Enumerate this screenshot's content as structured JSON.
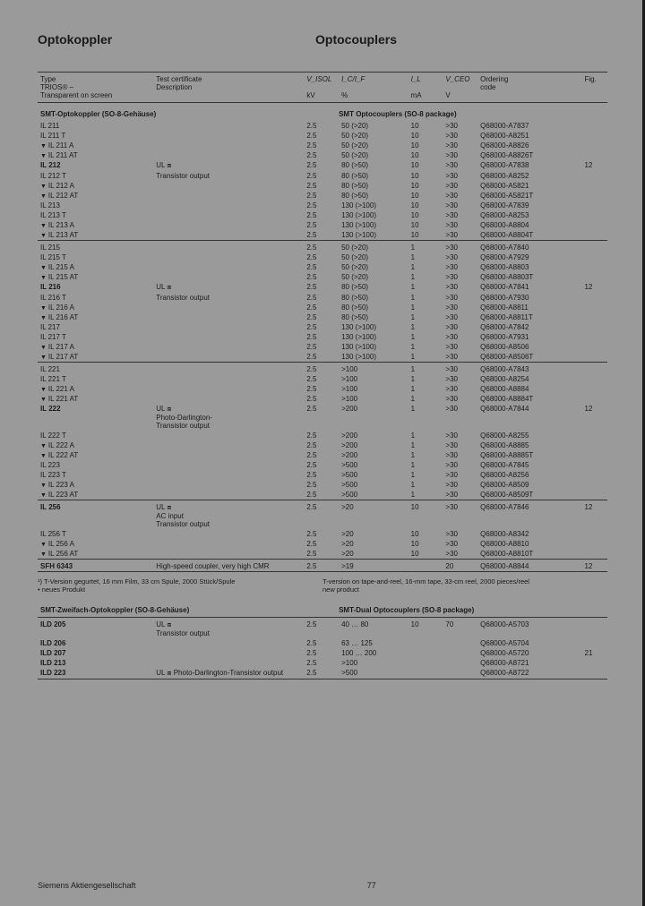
{
  "title_de": "Optokoppler",
  "title_en": "Optocouplers",
  "header": {
    "type": "Type\nTRIOS® –\nTransparent on screen",
    "desc": "Test certificate\nDescription",
    "viso": "V_ISOL",
    "viso_unit": "kV",
    "ictr": "I_C/I_F",
    "ictr_unit": "%",
    "il": "I_L",
    "il_unit": "mA",
    "vce": "V_CEO",
    "vce_unit": "V",
    "ord": "Ordering\ncode",
    "fig": "Fig."
  },
  "section1_de": "SMT-Optokoppler (SO-8-Gehäuse)",
  "section1_en": "SMT Optocouplers (SO-8 package)",
  "desc1a": "UL ⧈",
  "desc1b": "Transistor output",
  "desc1c": "UL ⧈\nPhoto-Darlington-\nTransistor output",
  "desc1d": "UL ⧈\nAC input\nTransistor output",
  "desc1e": "High-speed coupler, very high CMR",
  "groups": [
    {
      "rows": [
        {
          "t": "IL 211",
          "v": "2.5",
          "c": "50 (>20)",
          "il": "10",
          "vc": ">30",
          "o": "Q68000-A7837"
        },
        {
          "t": "IL 211 T",
          "v": "2.5",
          "c": "50 (>20)",
          "il": "10",
          "vc": ">30",
          "o": "Q68000-A8251"
        },
        {
          "t": "IL 211 A",
          "b": 1,
          "v": "2.5",
          "c": "50 (>20)",
          "il": "10",
          "vc": ">30",
          "o": "Q68000-A8826"
        },
        {
          "t": "IL 211 AT",
          "b": 1,
          "v": "2.5",
          "c": "50 (>20)",
          "il": "10",
          "vc": ">30",
          "o": "Q68000-A8826T"
        },
        {
          "t": "IL 212",
          "bold": 1,
          "v": "2.5",
          "c": "80 (>50)",
          "il": "10",
          "vc": ">30",
          "o": "Q68000-A7838",
          "fig": "12"
        },
        {
          "t": "IL 212 T",
          "v": "2.5",
          "c": "80 (>50)",
          "il": "10",
          "vc": ">30",
          "o": "Q68000-A8252"
        },
        {
          "t": "IL 212 A",
          "b": 1,
          "v": "2.5",
          "c": "80 (>50)",
          "il": "10",
          "vc": ">30",
          "o": "Q68000-A5821"
        },
        {
          "t": "IL 212 AT",
          "b": 1,
          "v": "2.5",
          "c": "80 (>50)",
          "il": "10",
          "vc": ">30",
          "o": "Q68000-A5821T"
        },
        {
          "t": "IL 213",
          "v": "2.5",
          "c": "130 (>100)",
          "il": "10",
          "vc": ">30",
          "o": "Q68000-A7839"
        },
        {
          "t": "IL 213 T",
          "v": "2.5",
          "c": "130 (>100)",
          "il": "10",
          "vc": ">30",
          "o": "Q68000-A8253"
        },
        {
          "t": "IL 213 A",
          "b": 1,
          "v": "2.5",
          "c": "130 (>100)",
          "il": "10",
          "vc": ">30",
          "o": "Q68000-A8804"
        },
        {
          "t": "IL 213 AT",
          "b": 1,
          "v": "2.5",
          "c": "130 (>100)",
          "il": "10",
          "vc": ">30",
          "o": "Q68000-A8804T"
        }
      ]
    },
    {
      "rows": [
        {
          "t": "IL 215",
          "v": "2.5",
          "c": "50 (>20)",
          "il": "1",
          "vc": ">30",
          "o": "Q68000-A7840"
        },
        {
          "t": "IL 215 T",
          "v": "2.5",
          "c": "50 (>20)",
          "il": "1",
          "vc": ">30",
          "o": "Q68000-A7929"
        },
        {
          "t": "IL 215 A",
          "b": 1,
          "v": "2.5",
          "c": "50 (>20)",
          "il": "1",
          "vc": ">30",
          "o": "Q68000-A8803"
        },
        {
          "t": "IL 215 AT",
          "b": 1,
          "v": "2.5",
          "c": "50 (>20)",
          "il": "1",
          "vc": ">30",
          "o": "Q68000-A8803T"
        },
        {
          "t": "IL 216",
          "bold": 1,
          "v": "2.5",
          "c": "80 (>50)",
          "il": "1",
          "vc": ">30",
          "o": "Q68000-A7841",
          "fig": "12"
        },
        {
          "t": "IL 216 T",
          "v": "2.5",
          "c": "80 (>50)",
          "il": "1",
          "vc": ">30",
          "o": "Q68000-A7930"
        },
        {
          "t": "IL 216 A",
          "b": 1,
          "v": "2.5",
          "c": "80 (>50)",
          "il": "1",
          "vc": ">30",
          "o": "Q68000-A8811"
        },
        {
          "t": "IL 216 AT",
          "b": 1,
          "v": "2.5",
          "c": "80 (>50)",
          "il": "1",
          "vc": ">30",
          "o": "Q68000-A8811T"
        },
        {
          "t": "IL 217",
          "v": "2.5",
          "c": "130 (>100)",
          "il": "1",
          "vc": ">30",
          "o": "Q68000-A7842"
        },
        {
          "t": "IL 217 T",
          "v": "2.5",
          "c": "130 (>100)",
          "il": "1",
          "vc": ">30",
          "o": "Q68000-A7931"
        },
        {
          "t": "IL 217 A",
          "b": 1,
          "v": "2.5",
          "c": "130 (>100)",
          "il": "1",
          "vc": ">30",
          "o": "Q68000-A8506"
        },
        {
          "t": "IL 217 AT",
          "b": 1,
          "v": "2.5",
          "c": "130 (>100)",
          "il": "1",
          "vc": ">30",
          "o": "Q68000-A8506T"
        }
      ]
    },
    {
      "rows": [
        {
          "t": "IL 221",
          "v": "2.5",
          "c": ">100",
          "il": "1",
          "vc": ">30",
          "o": "Q68000-A7843"
        },
        {
          "t": "IL 221 T",
          "v": "2.5",
          "c": ">100",
          "il": "1",
          "vc": ">30",
          "o": "Q68000-A8254"
        },
        {
          "t": "IL 221 A",
          "b": 1,
          "v": "2.5",
          "c": ">100",
          "il": "1",
          "vc": ">30",
          "o": "Q68000-A8884"
        },
        {
          "t": "IL 221 AT",
          "b": 1,
          "v": "2.5",
          "c": ">100",
          "il": "1",
          "vc": ">30",
          "o": "Q68000-A8884T"
        },
        {
          "t": "IL 222",
          "bold": 1,
          "v": "2.5",
          "c": ">200",
          "il": "1",
          "vc": ">30",
          "o": "Q68000-A7844",
          "fig": "12"
        },
        {
          "t": "IL 222 T",
          "v": "2.5",
          "c": ">200",
          "il": "1",
          "vc": ">30",
          "o": "Q68000-A8255"
        },
        {
          "t": "IL 222 A",
          "b": 1,
          "v": "2.5",
          "c": ">200",
          "il": "1",
          "vc": ">30",
          "o": "Q68000-A8885"
        },
        {
          "t": "IL 222 AT",
          "b": 1,
          "v": "2.5",
          "c": ">200",
          "il": "1",
          "vc": ">30",
          "o": "Q68000-A8885T"
        },
        {
          "t": "IL 223",
          "v": "2.5",
          "c": ">500",
          "il": "1",
          "vc": ">30",
          "o": "Q68000-A7845"
        },
        {
          "t": "IL 223 T",
          "v": "2.5",
          "c": ">500",
          "il": "1",
          "vc": ">30",
          "o": "Q68000-A8256"
        },
        {
          "t": "IL 223 A",
          "b": 1,
          "v": "2.5",
          "c": ">500",
          "il": "1",
          "vc": ">30",
          "o": "Q68000-A8509"
        },
        {
          "t": "IL 223 AT",
          "b": 1,
          "v": "2.5",
          "c": ">500",
          "il": "1",
          "vc": ">30",
          "o": "Q68000-A8509T"
        }
      ]
    },
    {
      "rows": [
        {
          "t": "IL 256",
          "bold": 1,
          "v": "2.5",
          "c": ">20",
          "il": "10",
          "vc": ">30",
          "o": "Q68000-A7846",
          "fig": "12"
        },
        {
          "t": "IL 256 T",
          "v": "2.5",
          "c": ">20",
          "il": "10",
          "vc": ">30",
          "o": "Q68000-A8342"
        },
        {
          "t": "IL 256 A",
          "b": 1,
          "v": "2.5",
          "c": ">20",
          "il": "10",
          "vc": ">30",
          "o": "Q68000-A8810"
        },
        {
          "t": "IL 256 AT",
          "b": 1,
          "v": "2.5",
          "c": ">20",
          "il": "10",
          "vc": ">30",
          "o": "Q68000-A8810T"
        }
      ]
    },
    {
      "rows": [
        {
          "t": "SFH 6343",
          "bold": 1,
          "v": "2.5",
          "c": ">19",
          "il": "",
          "vc": "20",
          "o": "Q68000-A8844",
          "fig": "12"
        }
      ]
    }
  ],
  "foot_de": "¹) T-Version gegurtet, 16 mm Film, 33 cm Spule, 2000 Stück/Spule\n• neues Produkt",
  "foot_en": "T-version on tape-and-reel, 16-mm tape, 33-cm reel, 2000 pieces/reel\nnew product",
  "section2_de": "SMT-Zweifach-Optokoppler (SO-8-Gehäuse)",
  "section2_en": "SMT-Dual Optocouplers (SO-8 package)",
  "desc2a": "UL ⧈\nTransistor output",
  "desc2b": "UL ⧈ Photo-Darlington-Transistor output",
  "rows2": [
    {
      "t": "ILD 205",
      "bold": 1,
      "v": "2.5",
      "c": "40 … 80",
      "il": "10",
      "vc": "70",
      "o": "Q68000-A5703"
    },
    {
      "t": "ILD 206",
      "bold": 1,
      "v": "2.5",
      "c": "63 … 125",
      "il": "",
      "vc": "",
      "o": "Q68000-A5704"
    },
    {
      "t": "ILD 207",
      "bold": 1,
      "v": "2.5",
      "c": "100 … 200",
      "il": "",
      "vc": "",
      "o": "Q68000-A5720",
      "fig": "21"
    },
    {
      "t": "ILD 213",
      "bold": 1,
      "v": "2.5",
      "c": ">100",
      "il": "",
      "vc": "",
      "o": "Q68000-A8721"
    },
    {
      "t": "ILD 223",
      "bold": 1,
      "v": "2.5",
      "c": ">500",
      "il": "",
      "vc": "",
      "o": "Q68000-A8722"
    }
  ],
  "footer_left": "Siemens Aktiengesellschaft",
  "footer_page": "77"
}
